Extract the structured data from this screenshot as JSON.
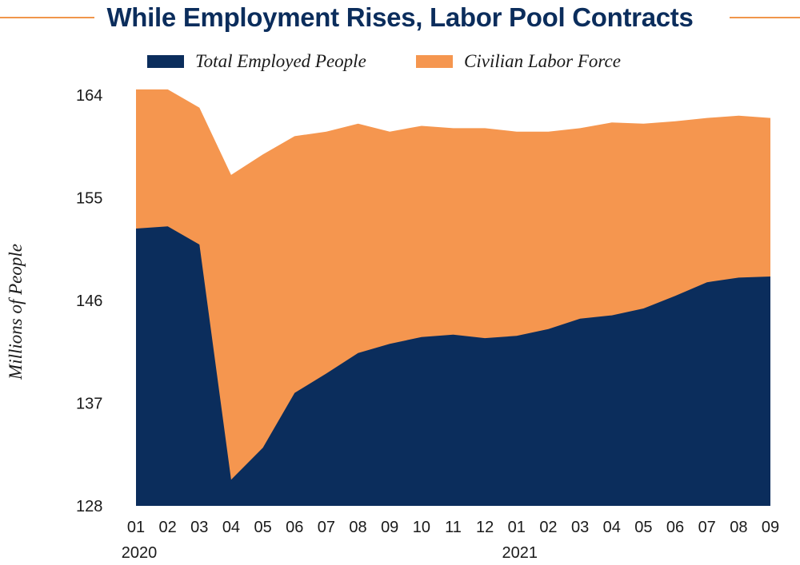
{
  "chart_data": {
    "type": "area",
    "title": "While Employment Rises, Labor Pool Contracts",
    "ylabel": "Millions of People",
    "xlabel": "",
    "ylim": [
      128,
      164
    ],
    "yticks": [
      164,
      155,
      146,
      137,
      128
    ],
    "categories": [
      "01",
      "02",
      "03",
      "04",
      "05",
      "06",
      "07",
      "08",
      "09",
      "10",
      "11",
      "12",
      "01",
      "02",
      "03",
      "04",
      "05",
      "06",
      "07",
      "08",
      "09"
    ],
    "year_labels": [
      {
        "label": "2020",
        "index": 0
      },
      {
        "label": "2021",
        "index": 12
      }
    ],
    "series": [
      {
        "name": "Civilian Labor Force",
        "color": "#f5964f",
        "values": [
          164.5,
          164.5,
          162.9,
          157.0,
          158.8,
          160.4,
          160.8,
          161.5,
          160.8,
          161.3,
          161.1,
          161.1,
          160.8,
          160.8,
          161.1,
          161.6,
          161.5,
          161.7,
          162.0,
          162.2,
          162.0
        ]
      },
      {
        "name": "Total Employed People",
        "color": "#0b2d5c",
        "values": [
          152.3,
          152.5,
          150.9,
          130.3,
          133.1,
          137.9,
          139.6,
          141.4,
          142.2,
          142.8,
          143.0,
          142.7,
          142.9,
          143.5,
          144.4,
          144.7,
          145.3,
          146.4,
          147.6,
          148.0,
          148.1
        ]
      }
    ]
  },
  "colors": {
    "title": "#0b2d5c",
    "accent": "#f0964b"
  }
}
